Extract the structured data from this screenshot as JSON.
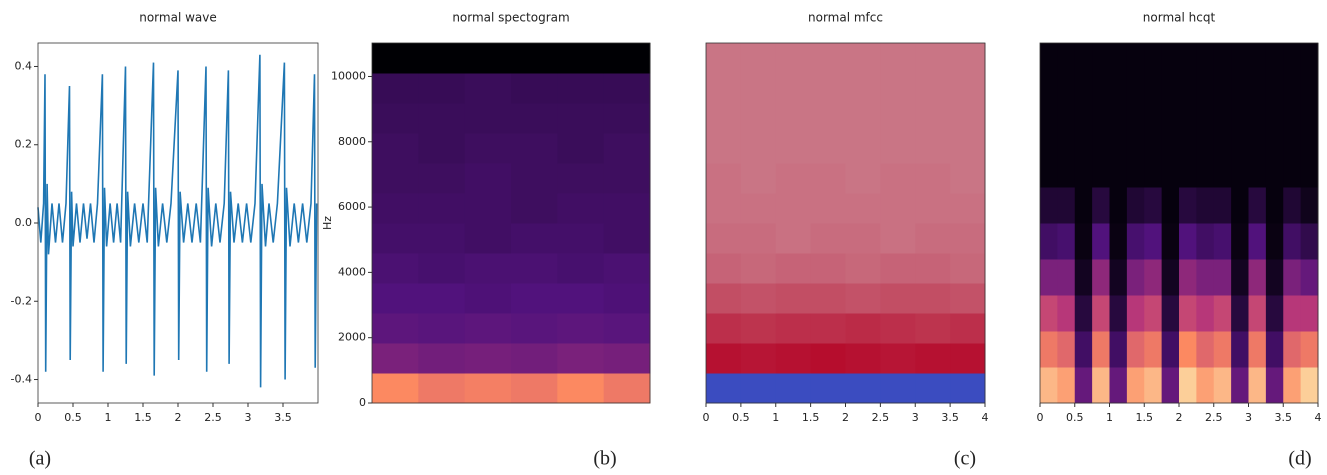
{
  "chart_data": [
    {
      "type": "line",
      "title": "normal wave",
      "caption": "(a)",
      "color": "#1f77b4",
      "x": [
        0.0,
        0.04,
        0.08,
        0.1,
        0.11,
        0.13,
        0.15,
        0.2,
        0.25,
        0.3,
        0.35,
        0.4,
        0.45,
        0.46,
        0.48,
        0.5,
        0.55,
        0.6,
        0.65,
        0.7,
        0.75,
        0.8,
        0.85,
        0.92,
        0.93,
        0.95,
        0.98,
        1.03,
        1.08,
        1.13,
        1.18,
        1.25,
        1.26,
        1.28,
        1.32,
        1.38,
        1.44,
        1.5,
        1.56,
        1.65,
        1.66,
        1.68,
        1.72,
        1.78,
        1.84,
        1.9,
        2.0,
        2.01,
        2.03,
        2.08,
        2.14,
        2.2,
        2.26,
        2.32,
        2.4,
        2.41,
        2.43,
        2.48,
        2.54,
        2.6,
        2.66,
        2.72,
        2.73,
        2.75,
        2.8,
        2.86,
        2.92,
        2.98,
        3.04,
        3.1,
        3.17,
        3.18,
        3.2,
        3.25,
        3.3,
        3.36,
        3.42,
        3.52,
        3.53,
        3.55,
        3.6,
        3.66,
        3.72,
        3.78,
        3.84,
        3.9,
        3.95,
        3.96,
        3.98
      ],
      "values": [
        0.04,
        -0.05,
        0.05,
        0.38,
        -0.38,
        0.1,
        -0.08,
        0.05,
        -0.05,
        0.05,
        -0.05,
        0.05,
        0.35,
        -0.35,
        0.08,
        -0.06,
        0.05,
        -0.05,
        0.05,
        -0.04,
        0.05,
        -0.05,
        0.05,
        0.38,
        -0.38,
        0.09,
        -0.06,
        0.05,
        -0.05,
        0.05,
        -0.05,
        0.4,
        -0.36,
        0.08,
        -0.06,
        0.05,
        -0.05,
        0.05,
        -0.05,
        0.41,
        -0.39,
        0.09,
        -0.06,
        0.05,
        -0.05,
        0.05,
        0.39,
        -0.35,
        0.08,
        -0.05,
        0.05,
        -0.05,
        0.05,
        -0.05,
        0.4,
        -0.38,
        0.09,
        -0.06,
        0.05,
        -0.05,
        0.05,
        0.39,
        -0.36,
        0.08,
        -0.05,
        0.05,
        -0.05,
        0.05,
        -0.05,
        0.05,
        0.43,
        -0.42,
        0.1,
        -0.06,
        0.05,
        -0.05,
        0.05,
        0.41,
        -0.4,
        0.09,
        -0.06,
        0.05,
        -0.05,
        0.05,
        -0.05,
        0.05,
        0.38,
        -0.37,
        0.05
      ],
      "xlim": [
        0,
        4.0
      ],
      "xticks": [
        0,
        0.5,
        1,
        1.5,
        2,
        2.5,
        3,
        3.5
      ],
      "ylim": [
        -0.46,
        0.46
      ],
      "yticks": [
        -0.4,
        -0.2,
        {
          "value": 0,
          "label": "0.0"
        },
        0.2,
        0.4
      ]
    },
    {
      "type": "heatmap",
      "title": "normal spectogram",
      "caption": "(b)",
      "ylabel": "Hz",
      "colormap": "magma",
      "ylim": [
        0,
        11025
      ],
      "yticks": [
        0,
        2000,
        4000,
        6000,
        8000,
        10000
      ],
      "z": [
        [
          0.75,
          0.7,
          0.72,
          0.7,
          0.75,
          0.7
        ],
        [
          0.35,
          0.33,
          0.34,
          0.33,
          0.35,
          0.34
        ],
        [
          0.28,
          0.27,
          0.28,
          0.27,
          0.28,
          0.27
        ],
        [
          0.25,
          0.25,
          0.24,
          0.25,
          0.25,
          0.24
        ],
        [
          0.23,
          0.22,
          0.23,
          0.23,
          0.22,
          0.23
        ],
        [
          0.21,
          0.21,
          0.2,
          0.21,
          0.21,
          0.2
        ],
        [
          0.2,
          0.2,
          0.2,
          0.19,
          0.2,
          0.2
        ],
        [
          0.19,
          0.19,
          0.2,
          0.19,
          0.19,
          0.19
        ],
        [
          0.19,
          0.18,
          0.19,
          0.19,
          0.18,
          0.19
        ],
        [
          0.18,
          0.18,
          0.18,
          0.18,
          0.18,
          0.18
        ],
        [
          0.17,
          0.17,
          0.18,
          0.17,
          0.17,
          0.17
        ],
        [
          0.0,
          0.0,
          0.0,
          0.0,
          0.0,
          0.0
        ]
      ]
    },
    {
      "type": "heatmap",
      "title": "normal mfcc",
      "caption": "(c)",
      "colormap": "coolwarm",
      "xlim": [
        0,
        4
      ],
      "xticks": [
        0,
        0.5,
        1,
        1.5,
        2,
        2.5,
        3,
        3.5,
        4
      ],
      "z": [
        [
          0.0,
          0.0,
          0.0,
          0.0,
          0.0,
          0.0,
          0.0,
          0.0
        ],
        [
          0.97,
          0.96,
          0.97,
          0.98,
          0.97,
          0.96,
          0.97,
          0.97
        ],
        [
          0.9,
          0.89,
          0.9,
          0.9,
          0.91,
          0.9,
          0.89,
          0.9
        ],
        [
          0.83,
          0.82,
          0.83,
          0.83,
          0.82,
          0.83,
          0.83,
          0.82
        ],
        [
          0.78,
          0.77,
          0.78,
          0.78,
          0.77,
          0.78,
          0.78,
          0.77
        ],
        [
          0.76,
          0.76,
          0.75,
          0.76,
          0.76,
          0.75,
          0.76,
          0.76
        ],
        [
          0.75,
          0.75,
          0.75,
          0.75,
          0.75,
          0.75,
          0.75,
          0.75
        ],
        [
          0.75,
          0.74,
          0.75,
          0.75,
          0.74,
          0.75,
          0.75,
          0.74
        ],
        [
          0.74,
          0.74,
          0.74,
          0.74,
          0.74,
          0.74,
          0.74,
          0.74
        ],
        [
          0.74,
          0.74,
          0.74,
          0.74,
          0.74,
          0.74,
          0.74,
          0.74
        ],
        [
          0.74,
          0.74,
          0.74,
          0.74,
          0.74,
          0.74,
          0.74,
          0.74
        ],
        [
          0.74,
          0.74,
          0.74,
          0.74,
          0.74,
          0.74,
          0.74,
          0.74
        ]
      ]
    },
    {
      "type": "heatmap",
      "title": "normal hcqt",
      "caption": "(d)",
      "colormap": "magma",
      "xlim": [
        0,
        4
      ],
      "xticks": [
        0,
        0.5,
        1,
        1.5,
        2,
        2.5,
        3,
        3.5,
        4
      ],
      "z": [
        [
          0.85,
          0.8,
          0.3,
          0.85,
          0.3,
          0.8,
          0.85,
          0.3,
          0.9,
          0.8,
          0.85,
          0.3,
          0.85,
          0.3,
          0.8,
          0.9
        ],
        [
          0.7,
          0.65,
          0.2,
          0.7,
          0.2,
          0.65,
          0.7,
          0.2,
          0.75,
          0.65,
          0.7,
          0.2,
          0.7,
          0.2,
          0.65,
          0.7
        ],
        [
          0.55,
          0.5,
          0.12,
          0.55,
          0.12,
          0.5,
          0.55,
          0.12,
          0.55,
          0.5,
          0.55,
          0.12,
          0.55,
          0.12,
          0.5,
          0.5
        ],
        [
          0.35,
          0.35,
          0.06,
          0.4,
          0.06,
          0.35,
          0.4,
          0.06,
          0.4,
          0.35,
          0.35,
          0.06,
          0.4,
          0.06,
          0.35,
          0.3
        ],
        [
          0.2,
          0.22,
          0.03,
          0.25,
          0.03,
          0.22,
          0.25,
          0.03,
          0.25,
          0.2,
          0.22,
          0.03,
          0.25,
          0.03,
          0.2,
          0.15
        ],
        [
          0.1,
          0.1,
          0.02,
          0.12,
          0.02,
          0.1,
          0.12,
          0.02,
          0.12,
          0.1,
          0.1,
          0.02,
          0.12,
          0.02,
          0.1,
          0.05
        ],
        [
          0.02,
          0.02,
          0.02,
          0.02,
          0.02,
          0.02,
          0.02,
          0.02,
          0.02,
          0.02,
          0.02,
          0.02,
          0.02,
          0.02,
          0.02,
          0.02
        ],
        [
          0.02,
          0.02,
          0.02,
          0.02,
          0.02,
          0.02,
          0.02,
          0.02,
          0.02,
          0.02,
          0.02,
          0.02,
          0.02,
          0.02,
          0.02,
          0.02
        ],
        [
          0.02,
          0.02,
          0.02,
          0.02,
          0.02,
          0.02,
          0.02,
          0.02,
          0.02,
          0.02,
          0.02,
          0.02,
          0.02,
          0.02,
          0.02,
          0.02
        ],
        [
          0.02,
          0.02,
          0.02,
          0.02,
          0.02,
          0.02,
          0.02,
          0.02,
          0.02,
          0.02,
          0.02,
          0.02,
          0.02,
          0.02,
          0.02,
          0.02
        ]
      ]
    }
  ]
}
